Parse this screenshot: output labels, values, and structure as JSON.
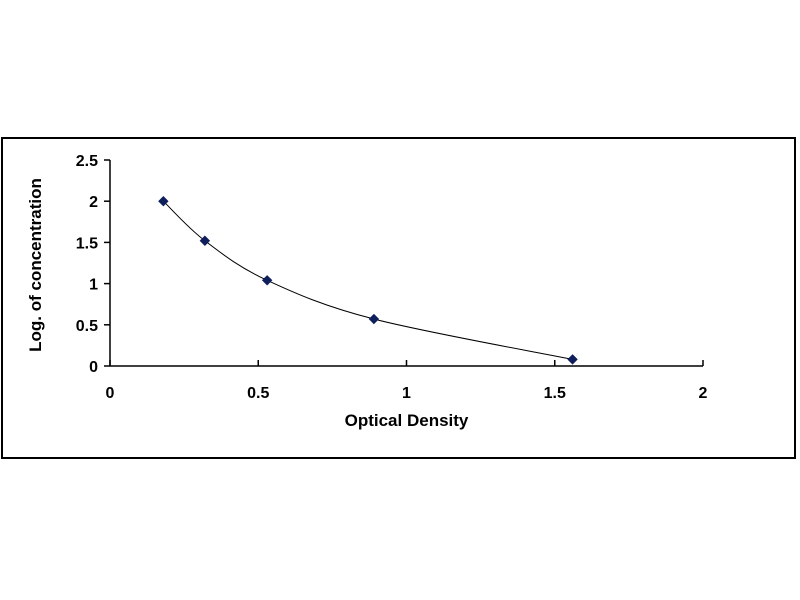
{
  "chart_data": {
    "type": "scatter",
    "title": "",
    "xlabel": "Optical Density",
    "ylabel": "Log. of concentration",
    "xlim": [
      0,
      2
    ],
    "ylim": [
      0,
      2.5
    ],
    "x_ticks": [
      "0",
      "0.5",
      "1",
      "1.5",
      "2"
    ],
    "y_ticks": [
      "0",
      "0.5",
      "1",
      "1.5",
      "2",
      "2.5"
    ],
    "x_tick_values": [
      0,
      0.5,
      1,
      1.5,
      2
    ],
    "y_tick_values": [
      0,
      0.5,
      1,
      1.5,
      2,
      2.5
    ],
    "grid": false,
    "legend": "none",
    "fit_line": "smooth curve through points",
    "series": [
      {
        "x": [
          0.18,
          0.32,
          0.53,
          0.89,
          1.56
        ],
        "y": [
          2.0,
          1.52,
          1.04,
          0.57,
          0.08
        ]
      }
    ],
    "marker": "diamond",
    "marker_color": "#0f1f5c",
    "line_color": "#000000"
  }
}
